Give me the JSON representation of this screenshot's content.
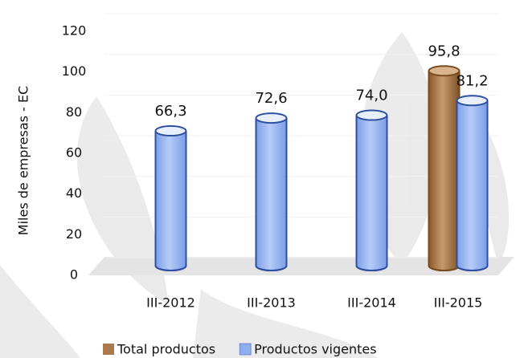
{
  "chart_data": {
    "type": "bar",
    "y_label": "Miles de empresas - EC",
    "categories": [
      "III-2012",
      "III-2013",
      "III-2014",
      "III-2015"
    ],
    "series": [
      {
        "name": "Total productos",
        "color": "#a97a4c",
        "values": [
          null,
          null,
          null,
          95.8
        ],
        "value_labels": [
          null,
          null,
          null,
          "95,8"
        ]
      },
      {
        "name": "Productos vigentes",
        "color": "#8eaef0",
        "values": [
          66.3,
          72.6,
          74.0,
          81.2
        ],
        "value_labels": [
          "66,3",
          "72,6",
          "74,0",
          "81,2"
        ]
      }
    ],
    "ylim": [
      0,
      120
    ],
    "yticks": [
      0,
      20,
      40,
      60,
      80,
      100,
      120
    ],
    "grid": true
  }
}
